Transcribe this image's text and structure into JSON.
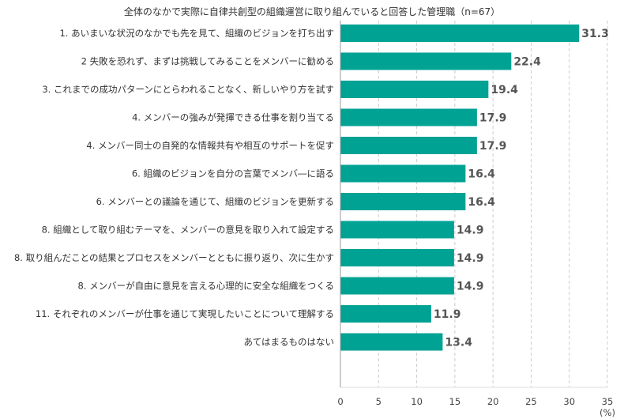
{
  "chart_data": {
    "type": "bar",
    "orientation": "horizontal",
    "title": "全体のなかで実際に自律共創型の組織運営に取り組んでいると回答した管理職（n=67）",
    "categories": [
      "1. あいまいな状況のなかでも先を見て、組織のビジョンを打ち出す",
      "2 失敗を恐れず、まずは挑戦してみることをメンバーに勧める",
      "3. これまでの成功パターンにとらわれることなく、新しいやり方を試す",
      "4. メンバーの強みが発揮できる仕事を割り当てる",
      "4. メンバー同士の自発的な情報共有や相互のサポートを促す",
      "6. 組織のビジョンを自分の言葉でメンバ―に語る",
      "6. メンバーとの議論を通じて、組織のビジョンを更新する",
      "8. 組織として取り組むテーマを、メンバーの意見を取り入れて設定する",
      "8. 取り組んだことの結果とプロセスをメンバーとともに振り返り、次に生かす",
      "8. メンバーが自由に意見を言える心理的に安全な組織をつくる",
      "11. それぞれのメンバーが仕事を通じて実現したいことについて理解する",
      "あてはまるものはない"
    ],
    "values": [
      31.3,
      22.4,
      19.4,
      17.9,
      17.9,
      16.4,
      16.4,
      14.9,
      14.9,
      14.9,
      11.9,
      13.4
    ],
    "value_labels": [
      "31.3",
      "22.4",
      "19.4",
      "17.9",
      "17.9",
      "16.4",
      "16.4",
      "14.9",
      "14.9",
      "14.9",
      "11.9",
      "13.4"
    ],
    "xticks": [
      0,
      5,
      10,
      15,
      20,
      25,
      30,
      35
    ],
    "xlim": [
      0,
      35
    ],
    "xunit": "(%)",
    "grid": "dashed vertical",
    "bar_color": "#00a294",
    "grid_color": "#cccccc",
    "axis_color": "#999999"
  }
}
